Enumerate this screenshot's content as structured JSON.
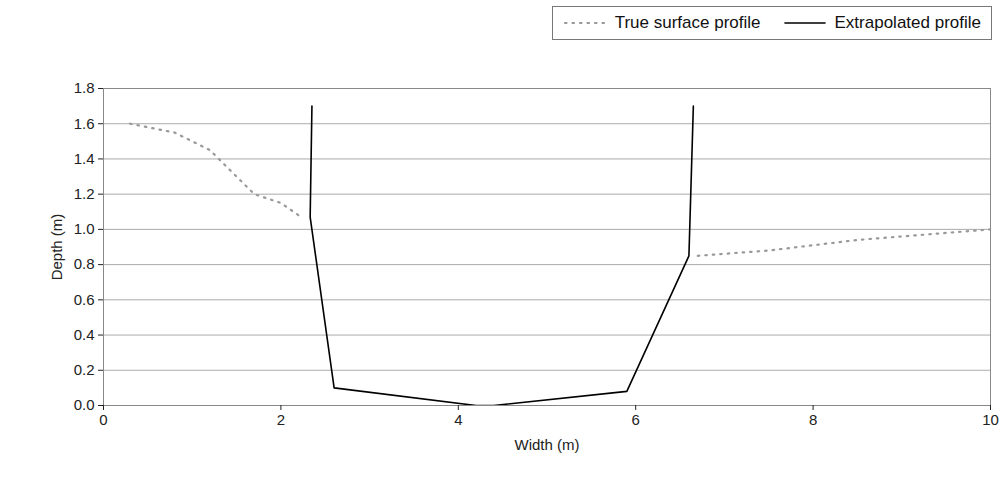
{
  "chart_data": {
    "type": "line",
    "x_label": "Width (m)",
    "y_label": "Depth (m)",
    "xlim": [
      0,
      10
    ],
    "xticks": [
      0,
      2,
      4,
      6,
      8,
      10
    ],
    "ylim": [
      0,
      1.8
    ],
    "yticks": [
      {
        "value": 0,
        "label": "0.0"
      },
      0.2,
      0.4,
      0.6,
      0.8,
      {
        "value": 1,
        "label": "1.0"
      },
      1.2,
      1.4,
      1.6,
      1.8
    ],
    "grid": true,
    "legend": "top-right",
    "series": [
      {
        "name": "True surface profile",
        "color": "#999999",
        "line_style": "dotted",
        "x": [
          0.3,
          0.8,
          1.2,
          1.5,
          1.7,
          2.0,
          2.2,
          null,
          6.7,
          7.5,
          8.5,
          9.0,
          10.0
        ],
        "values": [
          1.6,
          1.55,
          1.45,
          1.3,
          1.2,
          1.15,
          1.08,
          null,
          0.85,
          0.88,
          0.94,
          0.96,
          1.0
        ]
      },
      {
        "name": "Extrapolated profile",
        "color": "#000000",
        "line_style": "solid",
        "x": [
          2.35,
          2.33,
          2.6,
          4.2,
          4.4,
          5.9,
          6.6,
          6.65
        ],
        "values": [
          1.7,
          1.07,
          0.1,
          0.0,
          0.0,
          0.08,
          0.85,
          1.7
        ]
      }
    ]
  }
}
